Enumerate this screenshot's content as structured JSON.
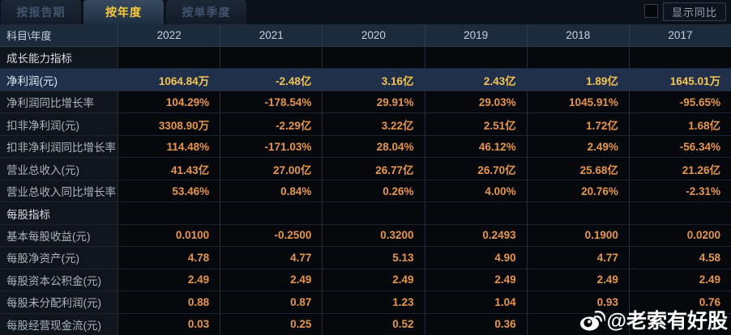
{
  "tabs": [
    {
      "label": "按报告期",
      "active": false
    },
    {
      "label": "按年度",
      "active": true
    },
    {
      "label": "按单季度",
      "active": false
    }
  ],
  "controls": {
    "show_yoy_label": "显示同比"
  },
  "table": {
    "corner_label": "科目\\年度",
    "years": [
      "2022",
      "2021",
      "2020",
      "2019",
      "2018",
      "2017"
    ],
    "more_icon": "»",
    "rows": [
      {
        "type": "section",
        "label": "成长能力指标",
        "values": [
          "",
          "",
          "",
          "",
          "",
          ""
        ]
      },
      {
        "type": "highlight",
        "label": "净利润(元)",
        "values": [
          "1064.84万",
          "-2.48亿",
          "3.16亿",
          "2.43亿",
          "1.89亿",
          "1645.01万"
        ]
      },
      {
        "type": "data",
        "label": "净利润同比增长率",
        "values": [
          "104.29%",
          "-178.54%",
          "29.91%",
          "29.03%",
          "1045.91%",
          "-95.65%"
        ]
      },
      {
        "type": "data",
        "label": "扣非净利润(元)",
        "values": [
          "3308.90万",
          "-2.29亿",
          "3.22亿",
          "2.51亿",
          "1.72亿",
          "1.68亿"
        ]
      },
      {
        "type": "data",
        "label": "扣非净利润同比增长率",
        "values": [
          "114.48%",
          "-171.03%",
          "28.04%",
          "46.12%",
          "2.49%",
          "-56.34%"
        ]
      },
      {
        "type": "data",
        "label": "营业总收入(元)",
        "values": [
          "41.43亿",
          "27.00亿",
          "26.77亿",
          "26.70亿",
          "25.68亿",
          "21.26亿"
        ]
      },
      {
        "type": "data",
        "label": "营业总收入同比增长率",
        "values": [
          "53.46%",
          "0.84%",
          "0.26%",
          "4.00%",
          "20.76%",
          "-2.31%"
        ]
      },
      {
        "type": "section",
        "label": "每股指标",
        "values": [
          "",
          "",
          "",
          "",
          "",
          ""
        ]
      },
      {
        "type": "data",
        "label": "基本每股收益(元)",
        "values": [
          "0.0100",
          "-0.2500",
          "0.3200",
          "0.2493",
          "0.1900",
          "0.0200"
        ]
      },
      {
        "type": "data",
        "label": "每股净资产(元)",
        "values": [
          "4.78",
          "4.77",
          "5.13",
          "4.90",
          "4.77",
          "4.58"
        ]
      },
      {
        "type": "data",
        "label": "每股资本公积金(元)",
        "values": [
          "2.49",
          "2.49",
          "2.49",
          "2.49",
          "2.49",
          "2.49"
        ]
      },
      {
        "type": "data",
        "label": "每股未分配利润(元)",
        "values": [
          "0.88",
          "0.87",
          "1.23",
          "1.04",
          "0.93",
          "0.76"
        ]
      },
      {
        "type": "data",
        "label": "每股经营现金流(元)",
        "values": [
          "0.03",
          "0.25",
          "0.52",
          "0.36",
          "",
          ""
        ]
      }
    ]
  },
  "watermark": {
    "text": "@老索有好股"
  },
  "colors": {
    "accent_gold": "#f8c93e",
    "value_orange": "#e6964d",
    "highlight_row_bg": "#20304a",
    "header_bg": "#1d2a39"
  }
}
